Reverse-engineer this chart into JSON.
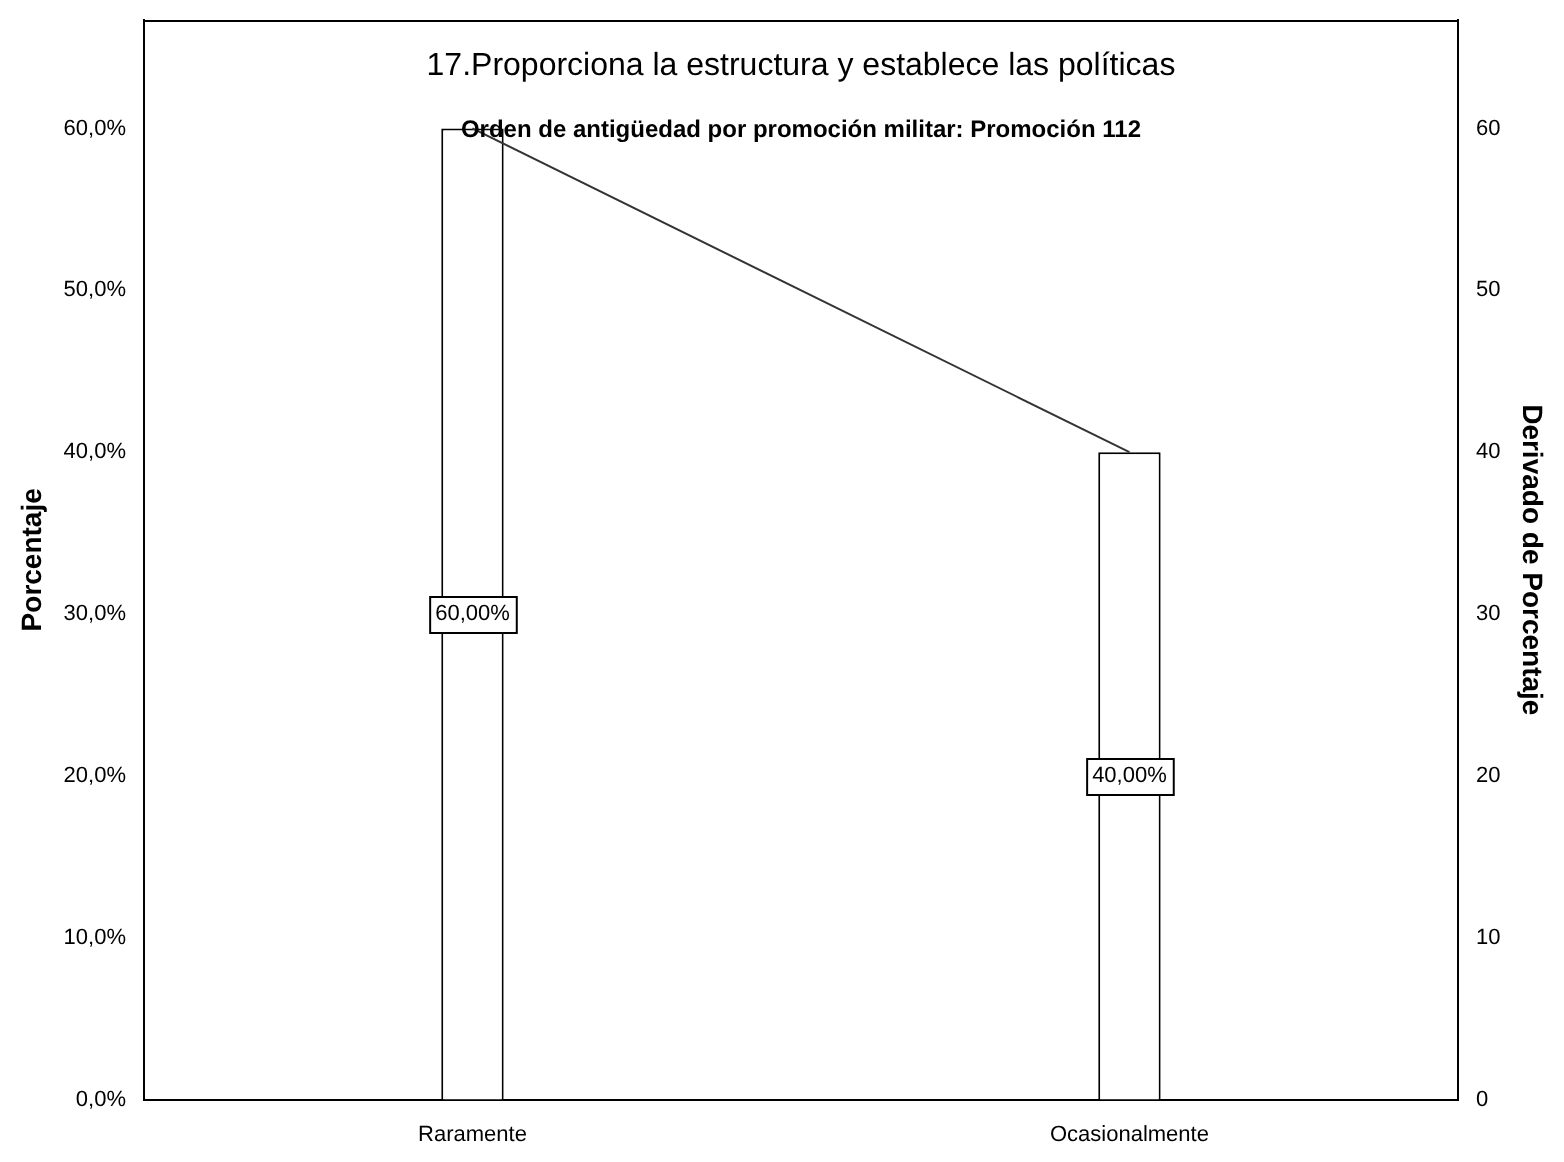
{
  "chart_data": {
    "type": "bar",
    "title": "17.Proporciona la estructura y establece las políticas",
    "subtitle": "Orden de antigüedad por promoción militar: Promoción 112",
    "ylabel": "Porcentaje",
    "y2label": "Derivado de Porcentaje",
    "categories": [
      "Raramente",
      "Ocasionalmente"
    ],
    "series": [
      {
        "color": "#ffffff",
        "values": [
          60,
          40
        ],
        "value_labels": [
          "60,00%",
          "40,00%"
        ]
      },
      {
        "type": "line",
        "axis": "y2",
        "color": "#333333",
        "values": [
          60,
          40
        ]
      }
    ],
    "ylim": [
      0,
      66.7
    ],
    "yticks": [
      {
        "value": 0,
        "label": "0,0%"
      },
      {
        "value": 10,
        "label": "10,0%"
      },
      {
        "value": 20,
        "label": "20,0%"
      },
      {
        "value": 30,
        "label": "30,0%"
      },
      {
        "value": 40,
        "label": "40,0%"
      },
      {
        "value": 50,
        "label": "50,0%"
      },
      {
        "value": 60,
        "label": "60,0%"
      }
    ],
    "y2lim": [
      0,
      66.7
    ],
    "y2ticks": [
      0,
      10,
      20,
      30,
      40,
      50,
      60
    ],
    "grid": false,
    "legend": false,
    "marker": "none"
  }
}
